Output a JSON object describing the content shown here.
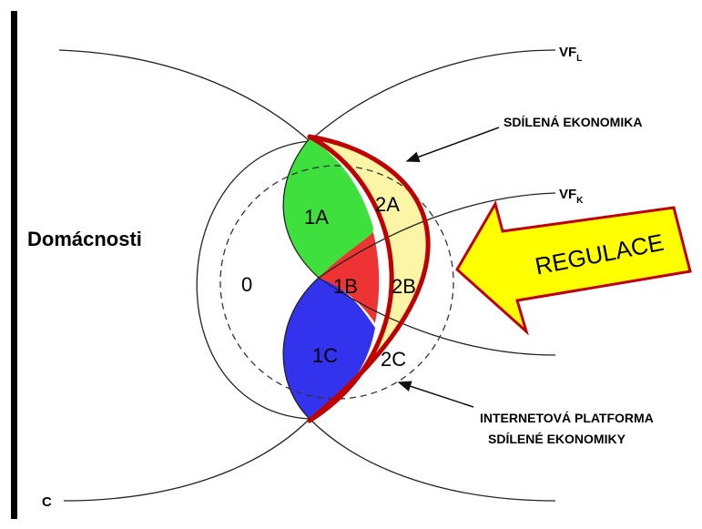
{
  "labels": {
    "vf_l": {
      "main": "VF",
      "sub": "L"
    },
    "sharing_economy": "SDÍLENÁ EKONOMIKA",
    "vf_k": {
      "main": "VF",
      "sub": "K"
    },
    "households": "Domácnosti",
    "regulation": "REGULACE",
    "platform_line1": "INTERNETOVÁ PLATFORMA",
    "platform_line2": "SDÍLENÉ EKONOMIKY",
    "c": "C"
  },
  "regions": [
    "0",
    "1A",
    "2A",
    "1B",
    "2B",
    "1C",
    "2C"
  ]
}
